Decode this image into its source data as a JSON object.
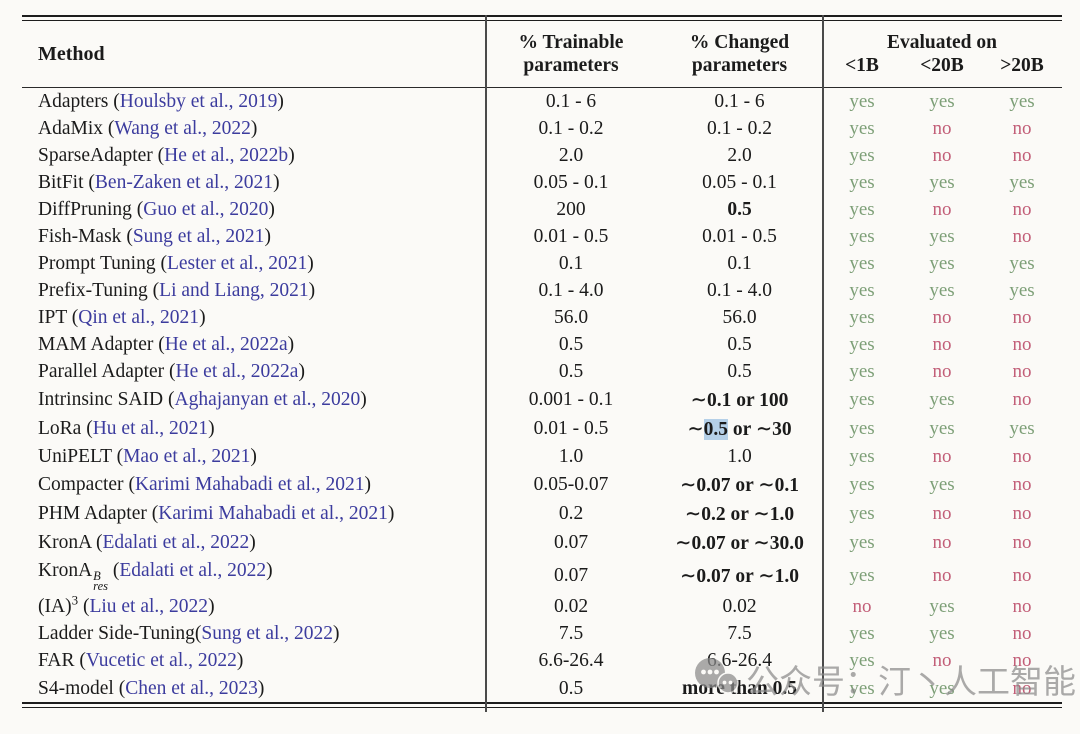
{
  "colors": {
    "yes": "#7d9f77",
    "no": "#c25e78",
    "link": "#3c3c9e",
    "hl": "#b5d0e8"
  },
  "watermark": {
    "text": "公众号：汀丶人工智能",
    "icon": "wechat-bubbles-icon"
  },
  "table": {
    "columns": {
      "method": "Method",
      "trainable_line1": "% Trainable",
      "trainable_line2": "parameters",
      "changed_line1": "% Changed",
      "changed_line2": "parameters",
      "evaluated": "Evaluated on",
      "eval_subcols": [
        "<1B",
        "<20B",
        ">20B"
      ]
    },
    "rows": [
      {
        "method": "Adapters",
        "cite": "Houlsby et al., 2019",
        "trainable": "0.1 - 6",
        "changed": "0.1 - 6",
        "changed_bold": false,
        "eval": [
          "yes",
          "yes",
          "yes"
        ]
      },
      {
        "method": "AdaMix",
        "cite": "Wang et al., 2022",
        "trainable": "0.1 - 0.2",
        "changed": "0.1 - 0.2",
        "changed_bold": false,
        "eval": [
          "yes",
          "no",
          "no"
        ]
      },
      {
        "method": "SparseAdapter",
        "cite": "He et al., 2022b",
        "trainable": "2.0",
        "changed": "2.0",
        "changed_bold": false,
        "eval": [
          "yes",
          "no",
          "no"
        ]
      },
      {
        "method": "BitFit",
        "cite": "Ben-Zaken et al., 2021",
        "trainable": "0.05 - 0.1",
        "changed": "0.05 - 0.1",
        "changed_bold": false,
        "eval": [
          "yes",
          "yes",
          "yes"
        ]
      },
      {
        "method": "DiffPruning",
        "cite": "Guo et al., 2020",
        "trainable": "200",
        "changed": "0.5",
        "changed_bold": true,
        "eval": [
          "yes",
          "no",
          "no"
        ]
      },
      {
        "method": "Fish-Mask",
        "cite": "Sung et al., 2021",
        "trainable": "0.01 - 0.5",
        "changed": "0.01 - 0.5",
        "changed_bold": false,
        "eval": [
          "yes",
          "yes",
          "no"
        ]
      },
      {
        "method": "Prompt Tuning",
        "cite": "Lester et al., 2021",
        "trainable": "0.1",
        "changed": "0.1",
        "changed_bold": false,
        "eval": [
          "yes",
          "yes",
          "yes"
        ]
      },
      {
        "method": "Prefix-Tuning",
        "cite": "Li and Liang, 2021",
        "trainable": "0.1 - 4.0",
        "changed": "0.1 - 4.0",
        "changed_bold": false,
        "eval": [
          "yes",
          "yes",
          "yes"
        ]
      },
      {
        "method": "IPT",
        "cite": "Qin et al., 2021",
        "trainable": "56.0",
        "changed": "56.0",
        "changed_bold": false,
        "eval": [
          "yes",
          "no",
          "no"
        ]
      },
      {
        "method": "MAM Adapter",
        "cite": "He et al., 2022a",
        "trainable": "0.5",
        "changed": "0.5",
        "changed_bold": false,
        "eval": [
          "yes",
          "no",
          "no"
        ]
      },
      {
        "method": "Parallel Adapter",
        "cite": "He et al., 2022a",
        "trainable": "0.5",
        "changed": "0.5",
        "changed_bold": false,
        "eval": [
          "yes",
          "no",
          "no"
        ]
      },
      {
        "method": "Intrinsinc SAID",
        "cite": "Aghajanyan et al., 2020",
        "trainable": "0.001 - 0.1",
        "changed": "∼0.1 or 100",
        "changed_bold": true,
        "eval": [
          "yes",
          "yes",
          "no"
        ]
      },
      {
        "method": "LoRa",
        "cite": "Hu et al., 2021",
        "trainable": "0.01 - 0.5",
        "changed": "∼0.5 or ∼30",
        "changed_bold": true,
        "changed_hl": "0.5",
        "eval": [
          "yes",
          "yes",
          "yes"
        ]
      },
      {
        "method": "UniPELT",
        "cite": "Mao et al., 2021",
        "trainable": "1.0",
        "changed": "1.0",
        "changed_bold": false,
        "eval": [
          "yes",
          "no",
          "no"
        ]
      },
      {
        "method": "Compacter",
        "cite": "Karimi Mahabadi et al., 2021",
        "trainable": "0.05-0.07",
        "changed": "∼0.07 or ∼0.1",
        "changed_bold": true,
        "eval": [
          "yes",
          "yes",
          "no"
        ]
      },
      {
        "method": "PHM Adapter",
        "cite": "Karimi Mahabadi et al., 2021",
        "trainable": "0.2",
        "changed": "∼0.2 or ∼1.0",
        "changed_bold": true,
        "eval": [
          "yes",
          "no",
          "no"
        ]
      },
      {
        "method": "KronA",
        "cite": "Edalati et al., 2022",
        "trainable": "0.07",
        "changed": "∼0.07 or ∼30.0",
        "changed_bold": true,
        "eval": [
          "yes",
          "no",
          "no"
        ]
      },
      {
        "method": "KronA",
        "sup": "B",
        "sub": "res",
        "cite": "Edalati et al., 2022",
        "trainable": "0.07",
        "changed": "∼0.07 or ∼1.0",
        "changed_bold": true,
        "eval": [
          "yes",
          "no",
          "no"
        ]
      },
      {
        "method": "(IA)",
        "sup": "3",
        "cite": "Liu et al., 2022",
        "trainable": "0.02",
        "changed": "0.02",
        "changed_bold": false,
        "eval": [
          "no",
          "yes",
          "no"
        ]
      },
      {
        "method": "Ladder Side-Tuning",
        "tight": true,
        "cite": "Sung et al., 2022",
        "trainable": "7.5",
        "changed": "7.5",
        "changed_bold": false,
        "eval": [
          "yes",
          "yes",
          "no"
        ]
      },
      {
        "method": "FAR",
        "cite": "Vucetic et al., 2022",
        "trainable": "6.6-26.4",
        "changed": "6.6-26.4",
        "changed_bold": false,
        "eval": [
          "yes",
          "no",
          "no"
        ]
      },
      {
        "method": "S4-model",
        "cite": "Chen et al., 2023",
        "trainable": "0.5",
        "changed": "more than 0.5",
        "changed_bold": true,
        "eval": [
          "yes",
          "yes",
          "no"
        ]
      }
    ]
  }
}
